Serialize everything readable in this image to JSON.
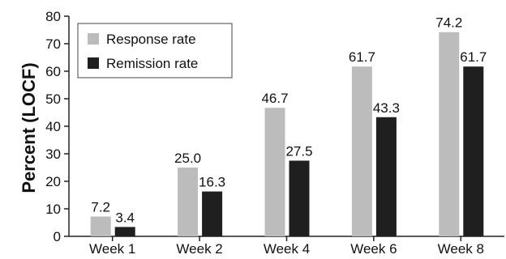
{
  "chart_data": {
    "type": "bar",
    "ylabel": "Percent (LOCF)",
    "xlabel": "",
    "title": "",
    "categories": [
      "Week 1",
      "Week 2",
      "Week 4",
      "Week 6",
      "Week 8"
    ],
    "series": [
      {
        "name": "Response rate",
        "color": "#bcbcbc",
        "values": [
          7.2,
          25.0,
          46.7,
          61.7,
          74.2
        ],
        "labels": [
          "7.2",
          "25.0",
          "46.7",
          "61.7",
          "74.2"
        ]
      },
      {
        "name": "Remission rate",
        "color": "#1f1f1f",
        "values": [
          3.4,
          16.3,
          27.5,
          43.3,
          61.7
        ],
        "labels": [
          "3.4",
          "16.3",
          "27.5",
          "43.3",
          "61.7"
        ]
      }
    ],
    "ylim": [
      0,
      80
    ],
    "yticks": [
      "0",
      "10",
      "20",
      "30",
      "40",
      "50",
      "60",
      "70",
      "80"
    ],
    "grid": false,
    "legend_position": "top-left"
  }
}
